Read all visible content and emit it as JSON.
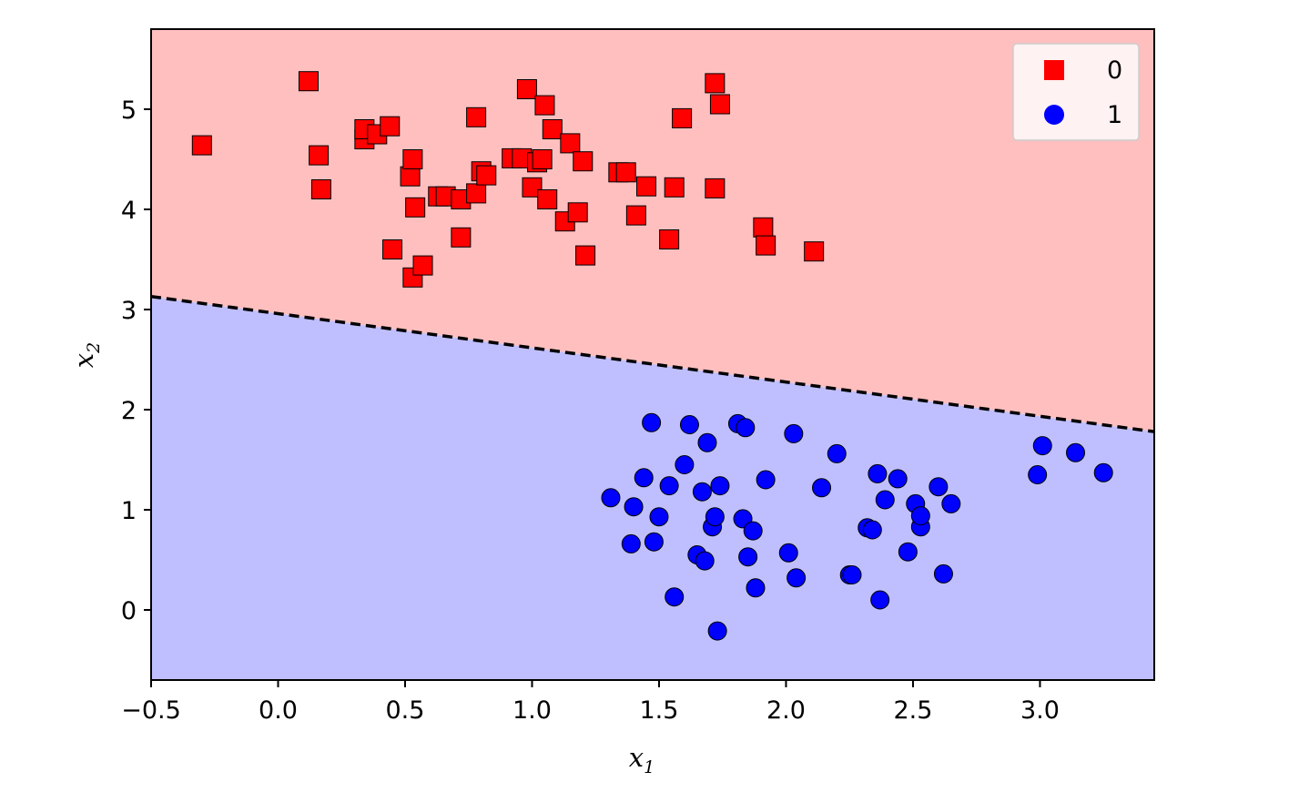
{
  "chart_data": {
    "type": "scatter",
    "title": "",
    "xlabel": "x",
    "xlabel_sub": "1",
    "ylabel": "x",
    "ylabel_sub": "2",
    "xlim": [
      -0.5,
      3.45
    ],
    "ylim": [
      -0.7,
      5.8
    ],
    "xticks": [
      -0.5,
      0.0,
      0.5,
      1.0,
      1.5,
      2.0,
      2.5,
      3.0
    ],
    "xtick_labels": [
      "−0.5",
      "0.0",
      "0.5",
      "1.0",
      "1.5",
      "2.0",
      "2.5",
      "3.0"
    ],
    "yticks": [
      0,
      1,
      2,
      3,
      4,
      5
    ],
    "ytick_labels": [
      "0",
      "1",
      "2",
      "3",
      "4",
      "5"
    ],
    "grid": false,
    "legend_position": "top-right",
    "decision_boundary": {
      "style": "dashed",
      "points": [
        [
          -0.5,
          3.13
        ],
        [
          3.45,
          1.78
        ]
      ]
    },
    "regions": [
      {
        "label": "0",
        "side": "above",
        "color": "#ffbfbf"
      },
      {
        "label": "1",
        "side": "below",
        "color": "#bfbfff"
      }
    ],
    "series": [
      {
        "name": "0",
        "marker": "square",
        "color": "#ff0000",
        "points": [
          [
            -0.3,
            4.64
          ],
          [
            0.12,
            5.28
          ],
          [
            0.16,
            4.54
          ],
          [
            0.17,
            4.2
          ],
          [
            0.34,
            4.7
          ],
          [
            0.34,
            4.8
          ],
          [
            0.39,
            4.75
          ],
          [
            0.44,
            4.83
          ],
          [
            0.45,
            3.6
          ],
          [
            0.52,
            4.33
          ],
          [
            0.53,
            4.5
          ],
          [
            0.54,
            4.02
          ],
          [
            0.53,
            3.32
          ],
          [
            0.57,
            3.44
          ],
          [
            0.63,
            4.13
          ],
          [
            0.66,
            4.13
          ],
          [
            0.72,
            4.1
          ],
          [
            0.72,
            3.72
          ],
          [
            0.78,
            4.92
          ],
          [
            0.78,
            4.16
          ],
          [
            0.8,
            4.38
          ],
          [
            0.82,
            4.34
          ],
          [
            0.92,
            4.51
          ],
          [
            0.96,
            4.51
          ],
          [
            0.98,
            5.2
          ],
          [
            1.0,
            4.22
          ],
          [
            1.02,
            4.47
          ],
          [
            1.04,
            4.5
          ],
          [
            1.05,
            5.04
          ],
          [
            1.06,
            4.1
          ],
          [
            1.08,
            4.8
          ],
          [
            1.13,
            3.88
          ],
          [
            1.15,
            4.66
          ],
          [
            1.18,
            3.97
          ],
          [
            1.2,
            4.48
          ],
          [
            1.21,
            3.54
          ],
          [
            1.34,
            4.37
          ],
          [
            1.37,
            4.37
          ],
          [
            1.41,
            3.94
          ],
          [
            1.45,
            4.23
          ],
          [
            1.54,
            3.7
          ],
          [
            1.56,
            4.22
          ],
          [
            1.59,
            4.91
          ],
          [
            1.72,
            5.26
          ],
          [
            1.74,
            5.05
          ],
          [
            1.72,
            4.21
          ],
          [
            1.91,
            3.82
          ],
          [
            1.92,
            3.64
          ],
          [
            2.11,
            3.58
          ]
        ]
      },
      {
        "name": "1",
        "marker": "circle",
        "color": "#0000ff",
        "points": [
          [
            1.31,
            1.12
          ],
          [
            1.4,
            1.03
          ],
          [
            1.39,
            0.66
          ],
          [
            1.44,
            1.32
          ],
          [
            1.47,
            1.87
          ],
          [
            1.48,
            0.68
          ],
          [
            1.5,
            0.93
          ],
          [
            1.54,
            1.24
          ],
          [
            1.56,
            0.13
          ],
          [
            1.6,
            1.45
          ],
          [
            1.62,
            1.85
          ],
          [
            1.65,
            0.55
          ],
          [
            1.67,
            1.18
          ],
          [
            1.68,
            0.49
          ],
          [
            1.69,
            1.67
          ],
          [
            1.71,
            0.83
          ],
          [
            1.72,
            0.93
          ],
          [
            1.74,
            1.24
          ],
          [
            1.73,
            -0.21
          ],
          [
            1.81,
            1.86
          ],
          [
            1.84,
            1.82
          ],
          [
            1.83,
            0.91
          ],
          [
            1.85,
            0.53
          ],
          [
            1.87,
            0.79
          ],
          [
            1.88,
            0.22
          ],
          [
            1.92,
            1.3
          ],
          [
            2.01,
            0.57
          ],
          [
            2.03,
            1.76
          ],
          [
            2.04,
            0.32
          ],
          [
            2.14,
            1.22
          ],
          [
            2.2,
            1.56
          ],
          [
            2.25,
            0.35
          ],
          [
            2.26,
            0.35
          ],
          [
            2.32,
            0.82
          ],
          [
            2.34,
            0.8
          ],
          [
            2.36,
            1.36
          ],
          [
            2.37,
            0.1
          ],
          [
            2.39,
            1.1
          ],
          [
            2.44,
            1.31
          ],
          [
            2.48,
            0.58
          ],
          [
            2.51,
            1.06
          ],
          [
            2.53,
            0.83
          ],
          [
            2.53,
            0.94
          ],
          [
            2.6,
            1.23
          ],
          [
            2.62,
            0.36
          ],
          [
            2.65,
            1.06
          ],
          [
            2.99,
            1.35
          ],
          [
            3.01,
            1.64
          ],
          [
            3.14,
            1.57
          ],
          [
            3.25,
            1.37
          ]
        ]
      }
    ]
  }
}
